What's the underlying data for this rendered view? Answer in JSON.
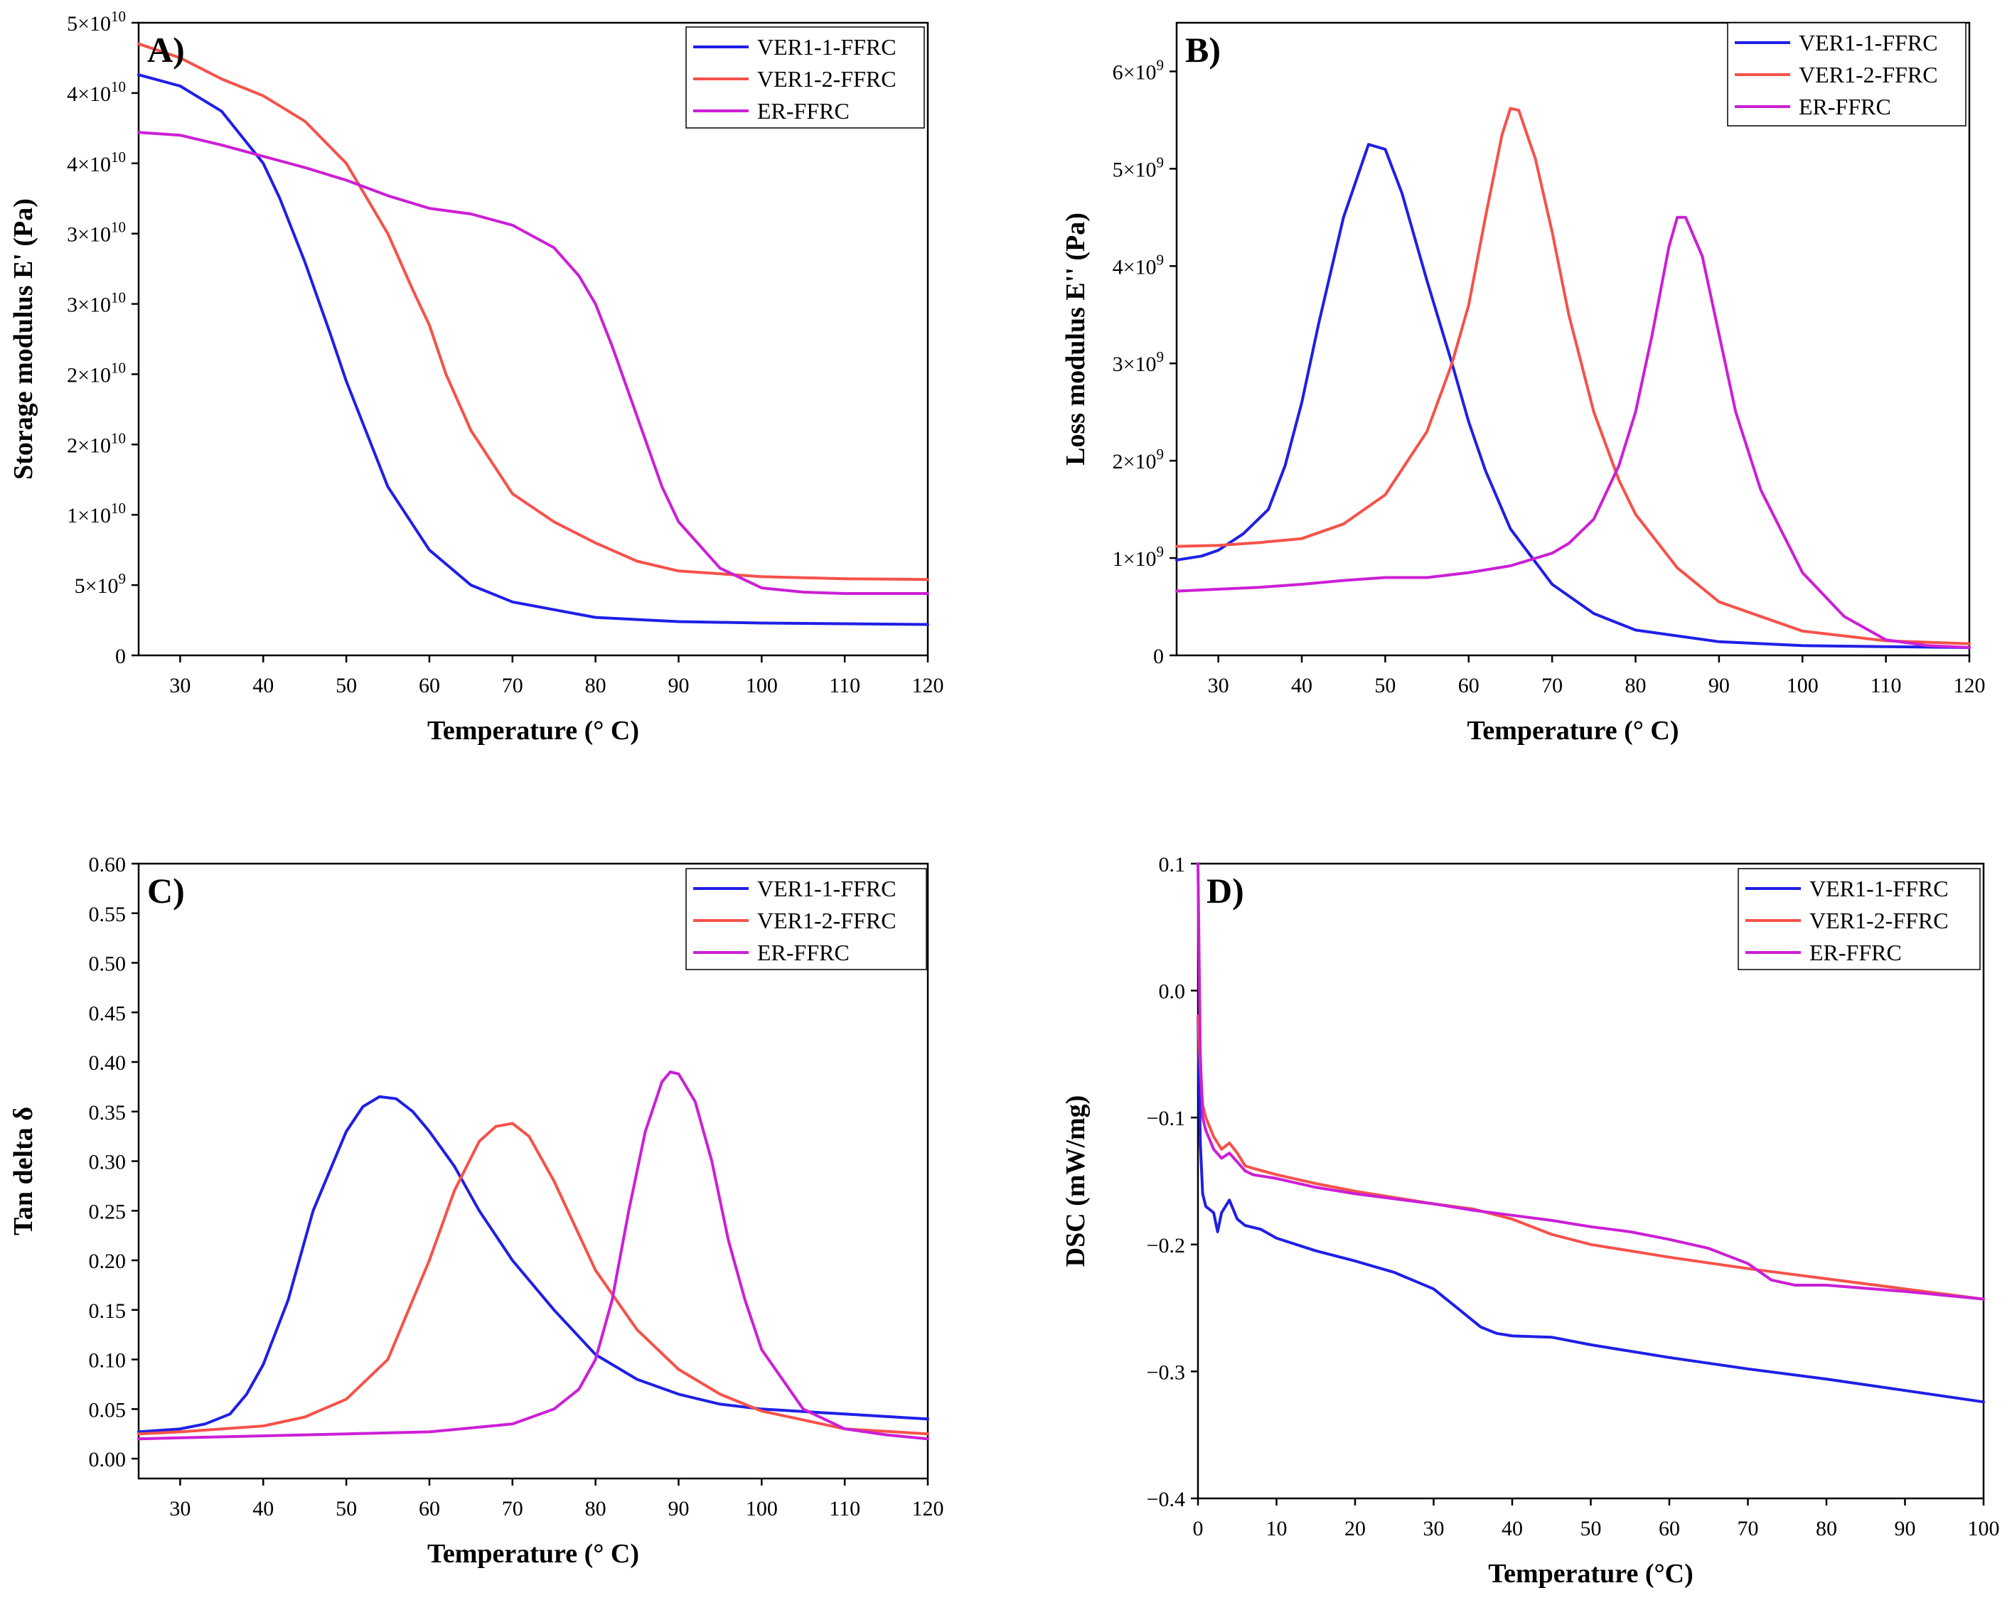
{
  "colors": {
    "VER1-1-FFRC": "#1f1fe6",
    "VER1-2-FFRC": "#f5524a",
    "ER-FFRC": "#cc1fd6"
  },
  "chart_data": [
    {
      "type": "line",
      "panel_label": "A)",
      "xlabel": "Temperature (° C)",
      "ylabel": "Storage modulus E' (Pa)",
      "xlim": [
        25,
        120
      ],
      "ylim": [
        0,
        45000000000.0
      ],
      "x_ticks": [
        30,
        40,
        50,
        60,
        70,
        80,
        90,
        100,
        110,
        120
      ],
      "y_ticks": [
        {
          "value": 0,
          "mantissa": "0",
          "exp": ""
        },
        {
          "value": 5000000000.0,
          "mantissa": "5×10",
          "exp": "9"
        },
        {
          "value": 10000000000.0,
          "mantissa": "1×10",
          "exp": "10"
        },
        {
          "value": 15000000000.0,
          "mantissa": "2×10",
          "exp": "10"
        },
        {
          "value": 20000000000.0,
          "mantissa": "2×10",
          "exp": "10"
        },
        {
          "value": 25000000000.0,
          "mantissa": "3×10",
          "exp": "10"
        },
        {
          "value": 30000000000.0,
          "mantissa": "3×10",
          "exp": "10"
        },
        {
          "value": 35000000000.0,
          "mantissa": "4×10",
          "exp": "10"
        },
        {
          "value": 40000000000.0,
          "mantissa": "4×10",
          "exp": "10"
        },
        {
          "value": 45000000000.0,
          "mantissa": "5×10",
          "exp": "10"
        }
      ],
      "legend": "top-right",
      "series": [
        {
          "name": "VER1-1-FFRC",
          "x": [
            25,
            30,
            35,
            40,
            42,
            45,
            48,
            50,
            55,
            60,
            65,
            70,
            80,
            90,
            100,
            110,
            120
          ],
          "y": [
            41300000000.0,
            40500000000.0,
            38700000000.0,
            35000000000.0,
            32500000000.0,
            28000000000.0,
            23000000000.0,
            19500000000.0,
            12000000000.0,
            7500000000.0,
            5000000000.0,
            3800000000.0,
            2700000000.0,
            2400000000.0,
            2300000000.0,
            2250000000.0,
            2200000000.0
          ]
        },
        {
          "name": "VER1-2-FFRC",
          "x": [
            25,
            30,
            35,
            40,
            45,
            50,
            55,
            58,
            60,
            62,
            65,
            70,
            75,
            80,
            85,
            90,
            100,
            110,
            120
          ],
          "y": [
            43500000000.0,
            42500000000.0,
            41000000000.0,
            39800000000.0,
            38000000000.0,
            35000000000.0,
            30000000000.0,
            26000000000.0,
            23500000000.0,
            20000000000.0,
            16000000000.0,
            11500000000.0,
            9500000000.0,
            8000000000.0,
            6700000000.0,
            6000000000.0,
            5600000000.0,
            5450000000.0,
            5400000000.0
          ]
        },
        {
          "name": "ER-FFRC",
          "x": [
            25,
            30,
            35,
            40,
            45,
            50,
            55,
            60,
            65,
            70,
            75,
            78,
            80,
            82,
            85,
            88,
            90,
            95,
            100,
            105,
            110,
            120
          ],
          "y": [
            37200000000.0,
            37000000000.0,
            36300000000.0,
            35500000000.0,
            34700000000.0,
            33800000000.0,
            32700000000.0,
            31800000000.0,
            31400000000.0,
            30600000000.0,
            29000000000.0,
            27000000000.0,
            25000000000.0,
            22000000000.0,
            17000000000.0,
            12000000000.0,
            9500000000.0,
            6200000000.0,
            4800000000.0,
            4500000000.0,
            4400000000.0,
            4400000000.0
          ]
        }
      ]
    },
    {
      "type": "line",
      "panel_label": "B)",
      "xlabel": "Temperature (° C)",
      "ylabel": "Loss modulus E'' (Pa)",
      "xlim": [
        25,
        120
      ],
      "ylim": [
        0,
        6500000000.0
      ],
      "x_ticks": [
        30,
        40,
        50,
        60,
        70,
        80,
        90,
        100,
        110,
        120
      ],
      "y_ticks": [
        {
          "value": 0,
          "mantissa": "0",
          "exp": ""
        },
        {
          "value": 1000000000.0,
          "mantissa": "1×10",
          "exp": "9"
        },
        {
          "value": 2000000000.0,
          "mantissa": "2×10",
          "exp": "9"
        },
        {
          "value": 3000000000.0,
          "mantissa": "3×10",
          "exp": "9"
        },
        {
          "value": 4000000000.0,
          "mantissa": "4×10",
          "exp": "9"
        },
        {
          "value": 5000000000.0,
          "mantissa": "5×10",
          "exp": "9"
        },
        {
          "value": 6000000000.0,
          "mantissa": "6×10",
          "exp": "9"
        }
      ],
      "legend": "top-right",
      "series": [
        {
          "name": "VER1-1-FFRC",
          "x": [
            25,
            28,
            30,
            33,
            36,
            38,
            40,
            42,
            45,
            48,
            50,
            52,
            55,
            58,
            60,
            62,
            65,
            70,
            75,
            80,
            90,
            100,
            110,
            120
          ],
          "y": [
            980000000.0,
            1020000000.0,
            1080000000.0,
            1250000000.0,
            1500000000.0,
            1950000000.0,
            2600000000.0,
            3400000000.0,
            4500000000.0,
            5250000000.0,
            5200000000.0,
            4750000000.0,
            3850000000.0,
            3000000000.0,
            2400000000.0,
            1900000000.0,
            1300000000.0,
            730000000.0,
            430000000.0,
            260000000.0,
            140000000.0,
            100000000.0,
            90000000.0,
            80000000.0
          ]
        },
        {
          "name": "VER1-2-FFRC",
          "x": [
            25,
            30,
            35,
            40,
            45,
            50,
            55,
            58,
            60,
            62,
            64,
            65,
            66,
            68,
            70,
            72,
            75,
            78,
            80,
            85,
            90,
            100,
            110,
            120
          ],
          "y": [
            1120000000.0,
            1130000000.0,
            1160000000.0,
            1200000000.0,
            1350000000.0,
            1650000000.0,
            2300000000.0,
            3000000000.0,
            3600000000.0,
            4500000000.0,
            5350000000.0,
            5620000000.0,
            5600000000.0,
            5100000000.0,
            4350000000.0,
            3500000000.0,
            2500000000.0,
            1800000000.0,
            1450000000.0,
            900000000.0,
            550000000.0,
            250000000.0,
            150000000.0,
            120000000.0
          ]
        },
        {
          "name": "ER-FFRC",
          "x": [
            25,
            30,
            35,
            40,
            45,
            50,
            55,
            60,
            65,
            70,
            72,
            75,
            78,
            80,
            82,
            84,
            85,
            86,
            88,
            90,
            92,
            95,
            100,
            105,
            110,
            115,
            120
          ],
          "y": [
            660000000.0,
            680000000.0,
            700000000.0,
            730000000.0,
            770000000.0,
            800000000.0,
            800000000.0,
            850000000.0,
            920000000.0,
            1050000000.0,
            1150000000.0,
            1400000000.0,
            1950000000.0,
            2500000000.0,
            3300000000.0,
            4200000000.0,
            4500000000.0,
            4500000000.0,
            4100000000.0,
            3300000000.0,
            2500000000.0,
            1700000000.0,
            850000000.0,
            400000000.0,
            160000000.0,
            100000000.0,
            80000000.0
          ]
        }
      ]
    },
    {
      "type": "line",
      "panel_label": "C)",
      "xlabel": "Temperature (° C)",
      "ylabel": "Tan delta δ",
      "xlim": [
        25,
        120
      ],
      "ylim": [
        -0.02,
        0.6
      ],
      "x_ticks": [
        30,
        40,
        50,
        60,
        70,
        80,
        90,
        100,
        110,
        120
      ],
      "y_ticks": [
        {
          "value": 0.0,
          "mantissa": "0.00",
          "exp": ""
        },
        {
          "value": 0.05,
          "mantissa": "0.05",
          "exp": ""
        },
        {
          "value": 0.1,
          "mantissa": "0.10",
          "exp": ""
        },
        {
          "value": 0.15,
          "mantissa": "0.15",
          "exp": ""
        },
        {
          "value": 0.2,
          "mantissa": "0.20",
          "exp": ""
        },
        {
          "value": 0.25,
          "mantissa": "0.25",
          "exp": ""
        },
        {
          "value": 0.3,
          "mantissa": "0.30",
          "exp": ""
        },
        {
          "value": 0.35,
          "mantissa": "0.35",
          "exp": ""
        },
        {
          "value": 0.4,
          "mantissa": "0.40",
          "exp": ""
        },
        {
          "value": 0.45,
          "mantissa": "0.45",
          "exp": ""
        },
        {
          "value": 0.5,
          "mantissa": "0.50",
          "exp": ""
        },
        {
          "value": 0.55,
          "mantissa": "0.55",
          "exp": ""
        },
        {
          "value": 0.6,
          "mantissa": "0.60",
          "exp": ""
        }
      ],
      "legend": "top-right",
      "series": [
        {
          "name": "VER1-1-FFRC",
          "x": [
            25,
            30,
            33,
            36,
            38,
            40,
            43,
            46,
            50,
            52,
            54,
            56,
            58,
            60,
            63,
            66,
            70,
            75,
            80,
            85,
            90,
            95,
            100,
            110,
            120
          ],
          "y": [
            0.027,
            0.03,
            0.035,
            0.045,
            0.065,
            0.095,
            0.16,
            0.25,
            0.33,
            0.355,
            0.365,
            0.363,
            0.35,
            0.33,
            0.295,
            0.25,
            0.2,
            0.15,
            0.105,
            0.08,
            0.065,
            0.055,
            0.05,
            0.045,
            0.04
          ]
        },
        {
          "name": "VER1-2-FFRC",
          "x": [
            25,
            30,
            35,
            40,
            45,
            50,
            55,
            60,
            63,
            66,
            68,
            70,
            72,
            75,
            80,
            85,
            90,
            95,
            100,
            110,
            120
          ],
          "y": [
            0.025,
            0.027,
            0.03,
            0.033,
            0.042,
            0.06,
            0.1,
            0.2,
            0.27,
            0.32,
            0.335,
            0.338,
            0.325,
            0.28,
            0.19,
            0.13,
            0.09,
            0.065,
            0.048,
            0.03,
            0.025
          ]
        },
        {
          "name": "ER-FFRC",
          "x": [
            25,
            30,
            40,
            50,
            60,
            70,
            75,
            78,
            80,
            82,
            84,
            86,
            88,
            89,
            90,
            92,
            94,
            96,
            98,
            100,
            105,
            110,
            115,
            120
          ],
          "y": [
            0.02,
            0.021,
            0.023,
            0.025,
            0.027,
            0.035,
            0.05,
            0.07,
            0.1,
            0.16,
            0.25,
            0.33,
            0.38,
            0.39,
            0.388,
            0.36,
            0.3,
            0.22,
            0.16,
            0.11,
            0.05,
            0.03,
            0.024,
            0.02
          ]
        }
      ]
    },
    {
      "type": "line",
      "panel_label": "D)",
      "xlabel": "Temperature (°C)",
      "ylabel": "DSC (mW/mg)",
      "xlim": [
        0,
        100
      ],
      "ylim": [
        -0.4,
        0.1
      ],
      "x_ticks": [
        0,
        10,
        20,
        30,
        40,
        50,
        60,
        70,
        80,
        90,
        100
      ],
      "y_ticks": [
        {
          "value": -0.4,
          "mantissa": "−0.4",
          "exp": ""
        },
        {
          "value": -0.3,
          "mantissa": "−0.3",
          "exp": ""
        },
        {
          "value": -0.2,
          "mantissa": "−0.2",
          "exp": ""
        },
        {
          "value": -0.1,
          "mantissa": "−0.1",
          "exp": ""
        },
        {
          "value": 0.0,
          "mantissa": "0.0",
          "exp": ""
        },
        {
          "value": 0.1,
          "mantissa": "0.1",
          "exp": ""
        }
      ],
      "legend": "top-right",
      "series": [
        {
          "name": "VER1-1-FFRC",
          "x": [
            0,
            0.3,
            0.6,
            1,
            2,
            2.5,
            3,
            3.5,
            4,
            5,
            6,
            8,
            10,
            15,
            20,
            25,
            30,
            33,
            36,
            38,
            40,
            45,
            50,
            60,
            70,
            80,
            90,
            100
          ],
          "y": [
            -0.02,
            -0.12,
            -0.16,
            -0.17,
            -0.175,
            -0.19,
            -0.175,
            -0.17,
            -0.165,
            -0.18,
            -0.185,
            -0.188,
            -0.195,
            -0.205,
            -0.213,
            -0.222,
            -0.235,
            -0.25,
            -0.265,
            -0.27,
            -0.272,
            -0.273,
            -0.279,
            -0.289,
            -0.298,
            -0.306,
            -0.315,
            -0.324
          ]
        },
        {
          "name": "VER1-2-FFRC",
          "x": [
            0,
            0.3,
            0.6,
            1,
            2,
            3,
            4,
            5,
            6,
            7,
            10,
            15,
            20,
            25,
            30,
            35,
            40,
            45,
            50,
            60,
            70,
            80,
            90,
            100
          ],
          "y": [
            -0.02,
            -0.06,
            -0.09,
            -0.1,
            -0.115,
            -0.125,
            -0.12,
            -0.128,
            -0.138,
            -0.14,
            -0.145,
            -0.152,
            -0.158,
            -0.163,
            -0.168,
            -0.172,
            -0.18,
            -0.192,
            -0.2,
            -0.21,
            -0.219,
            -0.227,
            -0.235,
            -0.243
          ]
        },
        {
          "name": "ER-FFRC",
          "x": [
            0,
            0.3,
            0.6,
            1,
            2,
            3,
            4,
            5,
            6,
            7,
            10,
            15,
            20,
            25,
            30,
            35,
            40,
            45,
            50,
            55,
            60,
            65,
            70,
            73,
            76,
            80,
            90,
            100
          ],
          "y": [
            0.1,
            -0.05,
            -0.1,
            -0.11,
            -0.125,
            -0.132,
            -0.128,
            -0.135,
            -0.142,
            -0.145,
            -0.148,
            -0.155,
            -0.16,
            -0.164,
            -0.168,
            -0.173,
            -0.177,
            -0.181,
            -0.186,
            -0.19,
            -0.196,
            -0.203,
            -0.215,
            -0.228,
            -0.232,
            -0.232,
            -0.237,
            -0.243
          ]
        }
      ]
    }
  ]
}
